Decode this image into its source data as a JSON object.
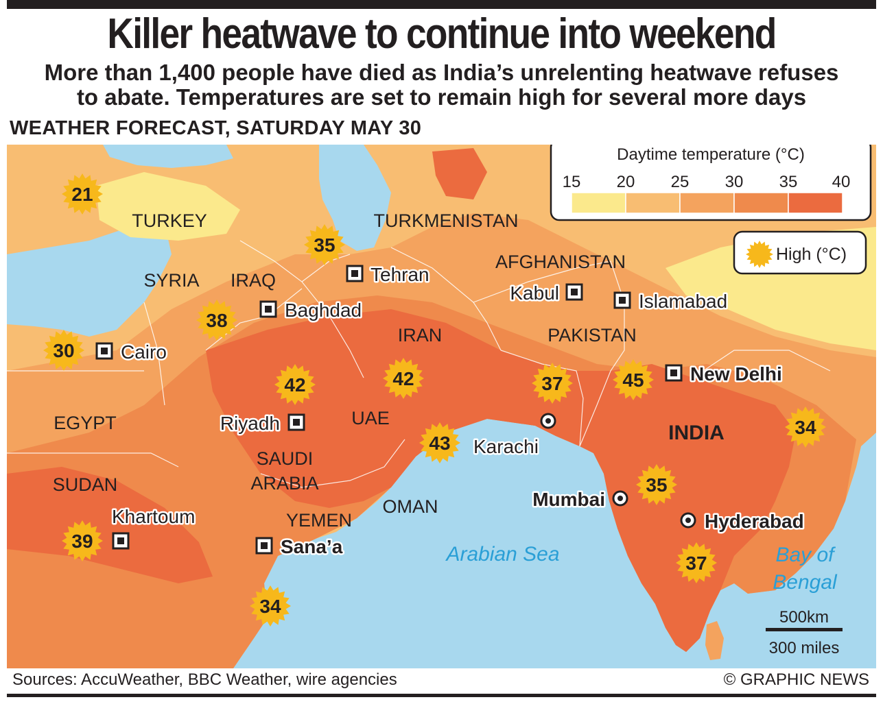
{
  "title": "Killer heatwave to continue into weekend",
  "subtitle_line1": "More than 1,400 people have died as India’s unrelenting heatwave refuses",
  "subtitle_line2": "to abate. Temperatures are set to remain high for several more days",
  "forecast_heading": "WEATHER FORECAST, SATURDAY MAY 30",
  "legend": {
    "title": "Daytime temperature (°C)",
    "ticks": [
      "15",
      "20",
      "25",
      "30",
      "35",
      "40"
    ],
    "bands": [
      {
        "range": "15-20",
        "color": "#fbe98c"
      },
      {
        "range": "20-25",
        "color": "#f8bd72"
      },
      {
        "range": "25-30",
        "color": "#f4a35e"
      },
      {
        "range": "30-35",
        "color": "#ef8a4c"
      },
      {
        "range": "35-40",
        "color": "#eb6b3f"
      }
    ],
    "high_label": "High (°C)",
    "high_icon": "sun-icon"
  },
  "colors": {
    "sea": "#a8d8ee",
    "sea_label": "#2a9fd6",
    "sun": "#f7b81b",
    "text": "#231f20"
  },
  "countries": [
    "TURKEY",
    "SYRIA",
    "IRAQ",
    "TURKMENISTAN",
    "AFGHANISTAN",
    "IRAN",
    "PAKISTAN",
    "INDIA",
    "EGYPT",
    "SAUDI ARABIA",
    "UAE",
    "SUDAN",
    "YEMEN",
    "OMAN"
  ],
  "seas": [
    "Arabian Sea",
    "Bay of Bengal"
  ],
  "cities": [
    {
      "name": "Tehran",
      "type": "capital",
      "bold": false
    },
    {
      "name": "Baghdad",
      "type": "capital",
      "bold": false
    },
    {
      "name": "Kabul",
      "type": "capital",
      "bold": false
    },
    {
      "name": "Islamabad",
      "type": "capital",
      "bold": false
    },
    {
      "name": "Cairo",
      "type": "capital",
      "bold": false
    },
    {
      "name": "New Delhi",
      "type": "capital",
      "bold": true
    },
    {
      "name": "Riyadh",
      "type": "capital",
      "bold": false
    },
    {
      "name": "Khartoum",
      "type": "capital",
      "bold": false
    },
    {
      "name": "Sana’a",
      "type": "capital",
      "bold": true
    },
    {
      "name": "Karachi",
      "type": "city",
      "bold": false
    },
    {
      "name": "Mumbai",
      "type": "city",
      "bold": true
    },
    {
      "name": "Hyderabad",
      "type": "city",
      "bold": true
    }
  ],
  "highs": [
    {
      "place": "Turkey",
      "value": 21
    },
    {
      "place": "Northern Iran",
      "value": 35
    },
    {
      "place": "Iraq",
      "value": 38
    },
    {
      "place": "Cairo",
      "value": 30
    },
    {
      "place": "Saudi Arabia",
      "value": 42
    },
    {
      "place": "Southern Iran",
      "value": 42
    },
    {
      "place": "Oman",
      "value": 43
    },
    {
      "place": "Pakistan",
      "value": 37
    },
    {
      "place": "New Delhi",
      "value": 45
    },
    {
      "place": "Eastern India",
      "value": 34
    },
    {
      "place": "Mumbai",
      "value": 35
    },
    {
      "place": "Southern India",
      "value": 37
    },
    {
      "place": "Khartoum",
      "value": 39
    },
    {
      "place": "Horn of Africa",
      "value": 34
    }
  ],
  "scale": {
    "km": "500km",
    "miles": "300 miles"
  },
  "sources": "Sources: AccuWeather, BBC Weather, wire agencies",
  "credit": "© GRAPHIC NEWS"
}
